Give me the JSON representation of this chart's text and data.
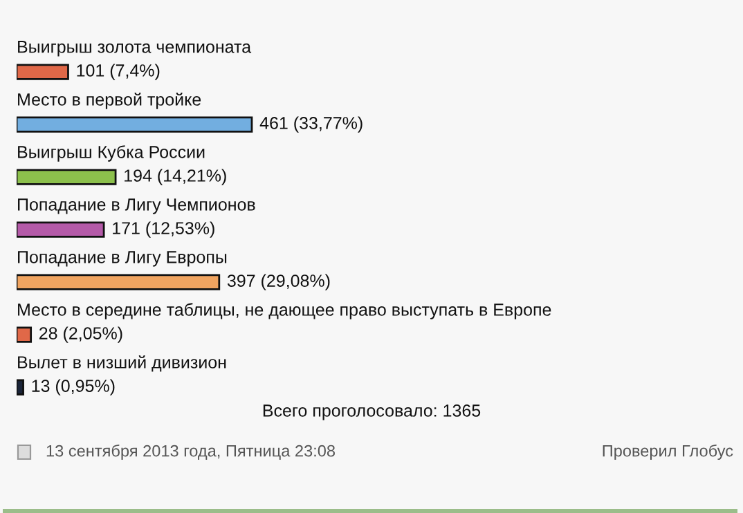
{
  "chart_data": {
    "type": "bar",
    "orientation": "horizontal",
    "categories": [
      "Выигрыш золота чемпионата",
      "Место в первой тройке",
      "Выигрыш Кубка России",
      "Попадание в Лигу Чемпионов",
      "Попадание в Лигу Европы",
      "Место в середине таблицы, не дающее право выступать в Европе",
      "Вылет в низший дивизион"
    ],
    "values": [
      101,
      461,
      194,
      171,
      397,
      28,
      13
    ],
    "value_labels": [
      "101 (7,4%)",
      "461 (33,77%)",
      "194 (14,21%)",
      "171 (12,53%)",
      "397 (29,08%)",
      "28 (2,05%)",
      "13 (0,95%)"
    ],
    "colors": [
      "#e06848",
      "#72aee0",
      "#8cc04c",
      "#b45aa8",
      "#f0a460",
      "#e06848",
      "#1a2438"
    ],
    "annotations": [
      "Всего проголосовало: 1365",
      "13 сентября 2013 года, Пятница 23:08",
      "Проверил Глобус"
    ]
  }
}
